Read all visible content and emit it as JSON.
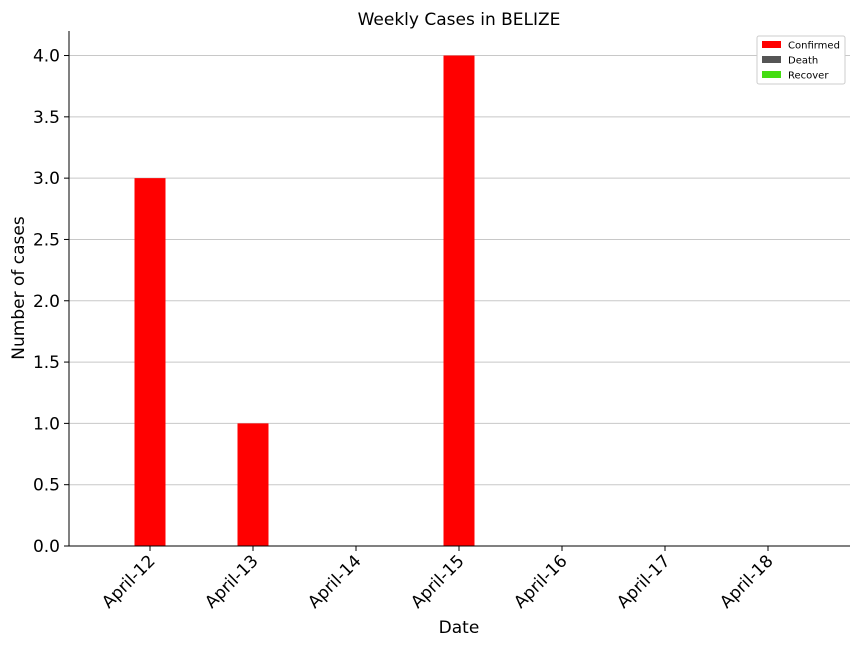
{
  "chart_data": {
    "type": "bar",
    "title": "Weekly Cases in BELIZE",
    "xlabel": "Date",
    "ylabel": "Number of cases",
    "categories": [
      "April-12",
      "April-13",
      "April-14",
      "April-15",
      "April-16",
      "April-17",
      "April-18"
    ],
    "series": [
      {
        "name": "Confirmed",
        "color": "#ff0000",
        "values": [
          3,
          1,
          0,
          4,
          0,
          0,
          0
        ]
      },
      {
        "name": "Death",
        "color": "#555555",
        "values": [
          0,
          0,
          0,
          0,
          0,
          0,
          0
        ]
      },
      {
        "name": "Recover",
        "color": "#44dd11",
        "values": [
          0,
          0,
          0,
          0,
          0,
          0,
          0
        ]
      }
    ],
    "ylim": [
      0,
      4.2
    ],
    "yticks": [
      "0.0",
      "0.5",
      "1.0",
      "1.5",
      "2.0",
      "2.5",
      "3.0",
      "3.5",
      "4.0"
    ],
    "grid": "horizontal",
    "legend_position": "top-right"
  }
}
